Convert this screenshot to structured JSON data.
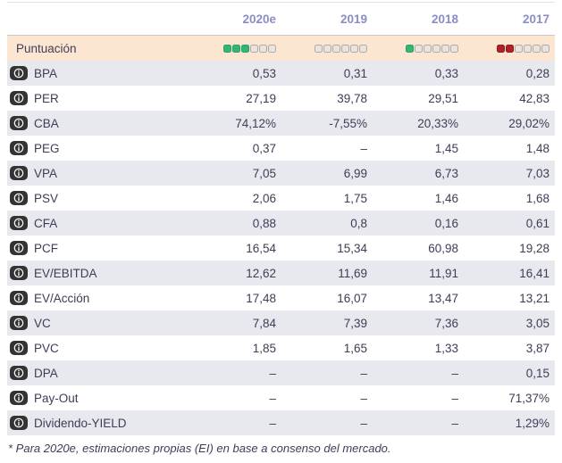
{
  "header": {
    "columns": [
      "2020e",
      "2019",
      "2018",
      "2017"
    ]
  },
  "score_row": {
    "label": "Puntuación",
    "scores": [
      {
        "filled": 3,
        "total": 6,
        "color": "green"
      },
      {
        "filled": 0,
        "total": 6,
        "color": "green"
      },
      {
        "filled": 1,
        "total": 6,
        "color": "green"
      },
      {
        "filled": 2,
        "total": 6,
        "color": "red"
      }
    ]
  },
  "rows": [
    {
      "label": "BPA",
      "values": [
        "0,53",
        "0,31",
        "0,33",
        "0,28"
      ]
    },
    {
      "label": "PER",
      "values": [
        "27,19",
        "39,78",
        "29,51",
        "42,83"
      ]
    },
    {
      "label": "CBA",
      "values": [
        "74,12%",
        "-7,55%",
        "20,33%",
        "29,02%"
      ]
    },
    {
      "label": "PEG",
      "values": [
        "0,37",
        "–",
        "1,45",
        "1,48"
      ]
    },
    {
      "label": "VPA",
      "values": [
        "7,05",
        "6,99",
        "6,73",
        "7,03"
      ]
    },
    {
      "label": "PSV",
      "values": [
        "2,06",
        "1,75",
        "1,46",
        "1,68"
      ]
    },
    {
      "label": "CFA",
      "values": [
        "0,88",
        "0,8",
        "0,16",
        "0,61"
      ]
    },
    {
      "label": "PCF",
      "values": [
        "16,54",
        "15,34",
        "60,98",
        "19,28"
      ]
    },
    {
      "label": "EV/EBITDA",
      "values": [
        "12,62",
        "11,69",
        "11,91",
        "16,41"
      ]
    },
    {
      "label": "EV/Acción",
      "values": [
        "17,48",
        "16,07",
        "13,47",
        "13,21"
      ]
    },
    {
      "label": "VC",
      "values": [
        "7,84",
        "7,39",
        "7,36",
        "3,05"
      ]
    },
    {
      "label": "PVC",
      "values": [
        "1,85",
        "1,65",
        "1,33",
        "3,87"
      ]
    },
    {
      "label": "DPA",
      "values": [
        "–",
        "–",
        "–",
        "0,15"
      ]
    },
    {
      "label": "Pay-Out",
      "values": [
        "–",
        "–",
        "–",
        "71,37%"
      ]
    },
    {
      "label": "Dividendo-YIELD",
      "values": [
        "–",
        "–",
        "–",
        "1,29%"
      ]
    }
  ],
  "footer": {
    "note": "* Para 2020e, estimaciones propias (EI) en base a consenso del mercado."
  },
  "colors": {
    "score_green": "#36b475",
    "score_red": "#b02125",
    "score_empty": "#e9e4df",
    "score_row_bg": "#fce6d1",
    "alt_row_bg": "#e8e8ef",
    "header_text": "#8a8ec4",
    "body_text": "#3f3d56",
    "info_icon_bg": "#333333"
  },
  "icons": {
    "info": "info-circle"
  }
}
